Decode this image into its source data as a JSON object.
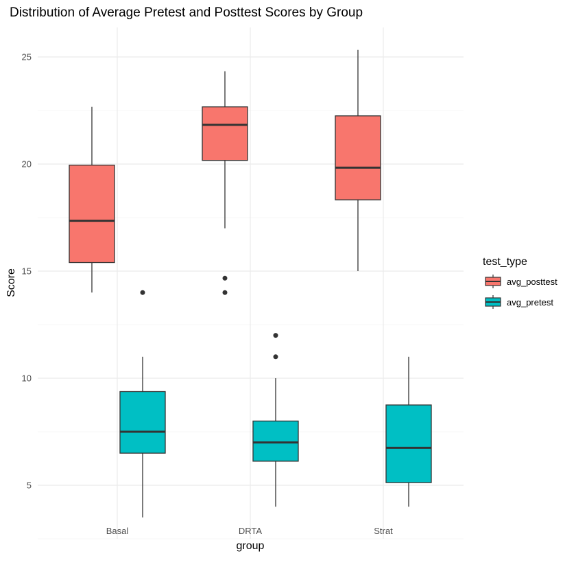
{
  "chart_data": {
    "type": "boxplot",
    "title": "Distribution of Average Pretest and Posttest Scores by Group",
    "xlabel": "group",
    "ylabel": "Score",
    "categories": [
      "Basal",
      "DRTA",
      "Strat"
    ],
    "ylim": [
      2.5,
      26.4
    ],
    "yticks": [
      5,
      10,
      15,
      20,
      25
    ],
    "grid": true,
    "legend": {
      "title": "test_type",
      "placement": "right",
      "entries": [
        "avg_posttest",
        "avg_pretest"
      ]
    },
    "series": [
      {
        "name": "avg_posttest",
        "color": "#F8766D",
        "boxes": [
          {
            "category": "Basal",
            "whisker_low": 14.0,
            "q1": 15.4,
            "median": 17.35,
            "q3": 19.95,
            "whisker_high": 22.67,
            "outliers": []
          },
          {
            "category": "DRTA",
            "whisker_low": 17.0,
            "q1": 20.17,
            "median": 21.83,
            "q3": 22.67,
            "whisker_high": 24.33,
            "outliers": [
              14.67,
              14.0
            ]
          },
          {
            "category": "Strat",
            "whisker_low": 15.0,
            "q1": 18.33,
            "median": 19.83,
            "q3": 22.25,
            "whisker_high": 25.33,
            "outliers": []
          }
        ]
      },
      {
        "name": "avg_pretest",
        "color": "#00BFC4",
        "boxes": [
          {
            "category": "Basal",
            "whisker_low": 3.5,
            "q1": 6.5,
            "median": 7.5,
            "q3": 9.375,
            "whisker_high": 11.0,
            "outliers": [
              14.0
            ]
          },
          {
            "category": "DRTA",
            "whisker_low": 4.0,
            "q1": 6.125,
            "median": 7.0,
            "q3": 8.0,
            "whisker_high": 10.0,
            "outliers": [
              12.0,
              11.0
            ]
          },
          {
            "category": "Strat",
            "whisker_low": 4.0,
            "q1": 5.125,
            "median": 6.75,
            "q3": 8.75,
            "whisker_high": 11.0,
            "outliers": []
          }
        ]
      }
    ]
  }
}
